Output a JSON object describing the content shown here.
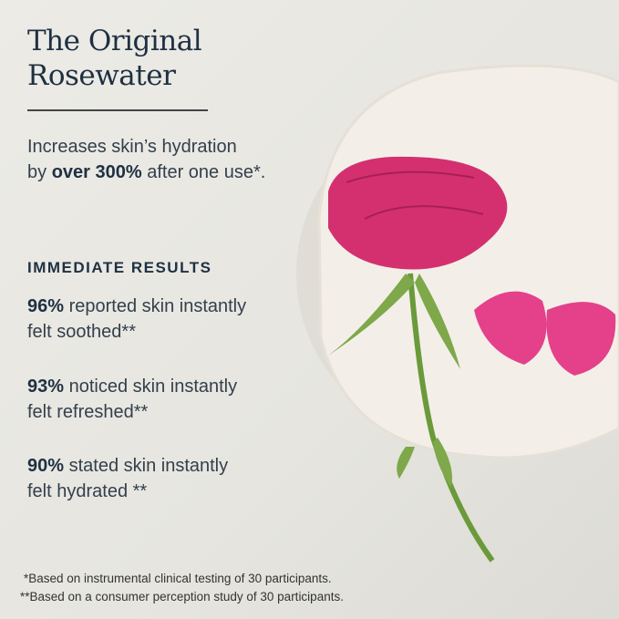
{
  "title": {
    "line1": "The Original",
    "line2": "Rosewater"
  },
  "subtitle": {
    "pre": "Increases skin’s hydration",
    "by": "by ",
    "bold": "over 300%",
    "post": " after one use*."
  },
  "results_heading": "IMMEDIATE RESULTS",
  "stats": [
    {
      "pct": "96%",
      "line1": " reported skin instantly",
      "line2": "felt soothed**"
    },
    {
      "pct": "93%",
      "line1": " noticed skin instantly",
      "line2": "felt refreshed**"
    },
    {
      "pct": "90%",
      "line1": " stated skin instantly",
      "line2": "felt hydrated **"
    }
  ],
  "footnotes": [
    "*Based on instrumental clinical testing of 30 participants.",
    "**Based on a consumer perception study of 30 participants."
  ],
  "colors": {
    "heading": "#1f3042",
    "rose": "#d4306f",
    "stem": "#6a9a3a",
    "dish": "#f3efe8"
  }
}
